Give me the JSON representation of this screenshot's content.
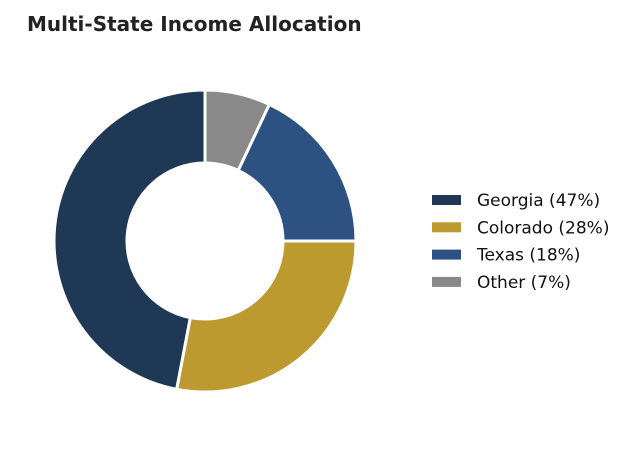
{
  "chart_data": {
    "type": "pie",
    "title": "Multi-State Income Allocation",
    "donut": true,
    "start_angle_deg": 90,
    "direction": "counterclockwise",
    "legend_placement": "right",
    "slices": [
      {
        "label": "Georgia (47%)",
        "value": 47,
        "color": "#1e3856"
      },
      {
        "label": "Colorado (28%)",
        "value": 28,
        "color": "#bd9a30"
      },
      {
        "label": "Texas (18%)",
        "value": 18,
        "color": "#2d5180"
      },
      {
        "label": "Other (7%)",
        "value": 7,
        "color": "#898989"
      }
    ]
  }
}
